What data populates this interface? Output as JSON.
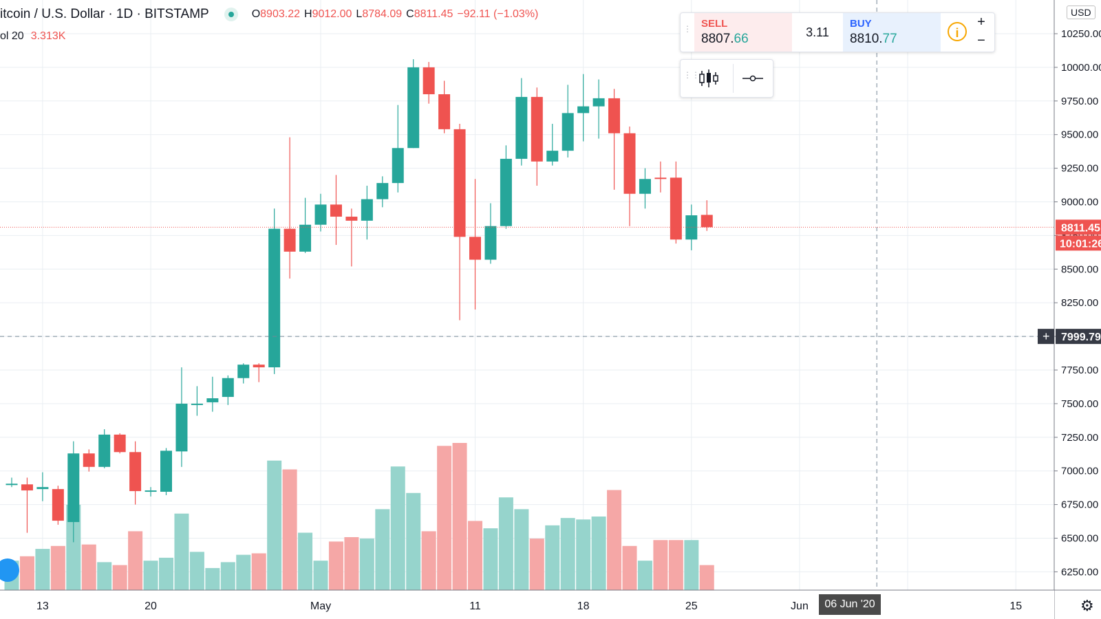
{
  "header": {
    "symbol": "itcoin / U.S. Dollar · 1D · BITSTAMP",
    "ohlc": {
      "o_label": "O",
      "o_value": "8903.22",
      "h_label": "H",
      "h_value": "9012.00",
      "l_label": "L",
      "l_value": "8784.09",
      "c_label": "C",
      "c_value": "8811.45",
      "change": "−92.11 (−1.03%)"
    },
    "volume_label": "ol 20",
    "volume_value": "3.313K"
  },
  "trade_panel": {
    "sell_label": "SELL",
    "sell_price_main": "8807.",
    "sell_price_tail": "66",
    "spread": "3.11",
    "buy_label": "BUY",
    "buy_price_main": "8810.",
    "buy_price_tail": "77",
    "info_icon": "i",
    "plus": "+",
    "minus": "−"
  },
  "axis": {
    "currency": "USD",
    "price_ticks": [
      "10250.00",
      "10000.00",
      "9750.00",
      "9500.00",
      "9250.00",
      "9000.00",
      "8750.00",
      "8500.00",
      "8250.00",
      "8000.00",
      "7750.00",
      "7500.00",
      "7250.00",
      "7000.00",
      "6750.00",
      "6500.00",
      "6250.00"
    ],
    "date_ticks": [
      "13",
      "20",
      "May",
      "11",
      "18",
      "25",
      "Jun",
      "15"
    ],
    "last_price_label": "8811.45",
    "countdown_label": "10:01:26",
    "crosshair_price_label": "7999.79",
    "crosshair_date_label": "06 Jun '20"
  },
  "colors": {
    "up": "#26a69a",
    "down": "#ef5350",
    "up_vol": "#96d4cc",
    "down_vol": "#f5a7a6",
    "grid": "#e9eef2"
  },
  "chart_data": {
    "type": "candlestick",
    "title": "itcoin / U.S. Dollar · 1D · BITSTAMP",
    "ylim": [
      6100,
      10400
    ],
    "volume_unit": "relative",
    "candles": [
      {
        "date": "2020-04-11",
        "o": 6905,
        "h": 6950,
        "l": 6880,
        "c": 6905,
        "v": 0.2
      },
      {
        "date": "2020-04-12",
        "o": 6900,
        "h": 6950,
        "l": 6540,
        "c": 6855,
        "v": 0.23
      },
      {
        "date": "2020-04-13",
        "o": 6865,
        "h": 6990,
        "l": 6775,
        "c": 6880,
        "v": 0.28
      },
      {
        "date": "2020-04-14",
        "o": 6865,
        "h": 6890,
        "l": 6600,
        "c": 6630,
        "v": 0.3
      },
      {
        "date": "2020-04-15",
        "o": 6620,
        "h": 7220,
        "l": 6470,
        "c": 7130,
        "v": 0.58
      },
      {
        "date": "2020-04-16",
        "o": 7130,
        "h": 7160,
        "l": 6995,
        "c": 7030,
        "v": 0.31
      },
      {
        "date": "2020-04-17",
        "o": 7030,
        "h": 7310,
        "l": 7020,
        "c": 7270,
        "v": 0.19
      },
      {
        "date": "2020-04-18",
        "o": 7270,
        "h": 7280,
        "l": 7130,
        "c": 7140,
        "v": 0.17
      },
      {
        "date": "2020-04-19",
        "o": 7140,
        "h": 7220,
        "l": 6750,
        "c": 6850,
        "v": 0.4
      },
      {
        "date": "2020-04-20",
        "o": 6850,
        "h": 6880,
        "l": 6810,
        "c": 6855,
        "v": 0.2
      },
      {
        "date": "2020-04-21",
        "o": 6845,
        "h": 7170,
        "l": 6820,
        "c": 7150,
        "v": 0.22
      },
      {
        "date": "2020-04-22",
        "o": 7145,
        "h": 7770,
        "l": 7030,
        "c": 7500,
        "v": 0.52
      },
      {
        "date": "2020-04-23",
        "o": 7500,
        "h": 7630,
        "l": 7410,
        "c": 7500,
        "v": 0.26
      },
      {
        "date": "2020-04-24",
        "o": 7510,
        "h": 7700,
        "l": 7440,
        "c": 7540,
        "v": 0.15
      },
      {
        "date": "2020-04-25",
        "o": 7550,
        "h": 7710,
        "l": 7490,
        "c": 7690,
        "v": 0.19
      },
      {
        "date": "2020-04-26",
        "o": 7690,
        "h": 7800,
        "l": 7650,
        "c": 7790,
        "v": 0.24
      },
      {
        "date": "2020-04-27",
        "o": 7790,
        "h": 7800,
        "l": 7660,
        "c": 7770,
        "v": 0.25
      },
      {
        "date": "2020-04-28",
        "o": 7770,
        "h": 8950,
        "l": 7720,
        "c": 8800,
        "v": 0.88
      },
      {
        "date": "2020-04-29",
        "o": 8800,
        "h": 9480,
        "l": 8430,
        "c": 8630,
        "v": 0.82
      },
      {
        "date": "2020-04-30",
        "o": 8630,
        "h": 9030,
        "l": 8620,
        "c": 8830,
        "v": 0.39
      },
      {
        "date": "2020-05-01",
        "o": 8830,
        "h": 9060,
        "l": 8780,
        "c": 8980,
        "v": 0.2
      },
      {
        "date": "2020-05-02",
        "o": 8980,
        "h": 9200,
        "l": 8680,
        "c": 8890,
        "v": 0.33
      },
      {
        "date": "2020-05-03",
        "o": 8890,
        "h": 8950,
        "l": 8520,
        "c": 8860,
        "v": 0.36
      },
      {
        "date": "2020-05-04",
        "o": 8860,
        "h": 9120,
        "l": 8720,
        "c": 9020,
        "v": 0.35
      },
      {
        "date": "2020-05-05",
        "o": 9020,
        "h": 9190,
        "l": 8960,
        "c": 9140,
        "v": 0.55
      },
      {
        "date": "2020-05-06",
        "o": 9140,
        "h": 9720,
        "l": 9070,
        "c": 9400,
        "v": 0.84
      },
      {
        "date": "2020-05-07",
        "o": 9400,
        "h": 10060,
        "l": 9400,
        "c": 10000,
        "v": 0.66
      },
      {
        "date": "2020-05-08",
        "o": 10000,
        "h": 10040,
        "l": 9730,
        "c": 9800,
        "v": 0.4
      },
      {
        "date": "2020-05-09",
        "o": 9800,
        "h": 9900,
        "l": 9510,
        "c": 9540,
        "v": 0.98
      },
      {
        "date": "2020-05-10",
        "o": 9540,
        "h": 9580,
        "l": 8120,
        "c": 8740,
        "v": 1.0
      },
      {
        "date": "2020-05-11",
        "o": 8740,
        "h": 9170,
        "l": 8200,
        "c": 8570,
        "v": 0.47
      },
      {
        "date": "2020-05-12",
        "o": 8570,
        "h": 8990,
        "l": 8540,
        "c": 8820,
        "v": 0.42
      },
      {
        "date": "2020-05-13",
        "o": 8820,
        "h": 9420,
        "l": 8800,
        "c": 9320,
        "v": 0.63
      },
      {
        "date": "2020-05-14",
        "o": 9320,
        "h": 9920,
        "l": 9270,
        "c": 9780,
        "v": 0.55
      },
      {
        "date": "2020-05-15",
        "o": 9780,
        "h": 9850,
        "l": 9120,
        "c": 9300,
        "v": 0.35
      },
      {
        "date": "2020-05-16",
        "o": 9300,
        "h": 9580,
        "l": 9270,
        "c": 9380,
        "v": 0.44
      },
      {
        "date": "2020-05-17",
        "o": 9380,
        "h": 9870,
        "l": 9330,
        "c": 9660,
        "v": 0.49
      },
      {
        "date": "2020-05-18",
        "o": 9660,
        "h": 9950,
        "l": 9450,
        "c": 9710,
        "v": 0.48
      },
      {
        "date": "2020-05-19",
        "o": 9710,
        "h": 9910,
        "l": 9470,
        "c": 9770,
        "v": 0.5
      },
      {
        "date": "2020-05-20",
        "o": 9770,
        "h": 9840,
        "l": 9090,
        "c": 9510,
        "v": 0.68
      },
      {
        "date": "2020-05-21",
        "o": 9510,
        "h": 9560,
        "l": 8820,
        "c": 9060,
        "v": 0.3
      },
      {
        "date": "2020-05-22",
        "o": 9060,
        "h": 9250,
        "l": 8950,
        "c": 9170,
        "v": 0.2
      },
      {
        "date": "2020-05-23",
        "o": 9180,
        "h": 9300,
        "l": 9070,
        "c": 9170,
        "v": 0.34
      },
      {
        "date": "2020-05-24",
        "o": 9180,
        "h": 9300,
        "l": 8690,
        "c": 8720,
        "v": 0.34
      },
      {
        "date": "2020-05-25",
        "o": 8720,
        "h": 8980,
        "l": 8640,
        "c": 8900,
        "v": 0.34
      },
      {
        "date": "2020-05-26",
        "o": 8903.22,
        "h": 9012.0,
        "l": 8784.09,
        "c": 8811.45,
        "v": 0.17
      }
    ]
  }
}
